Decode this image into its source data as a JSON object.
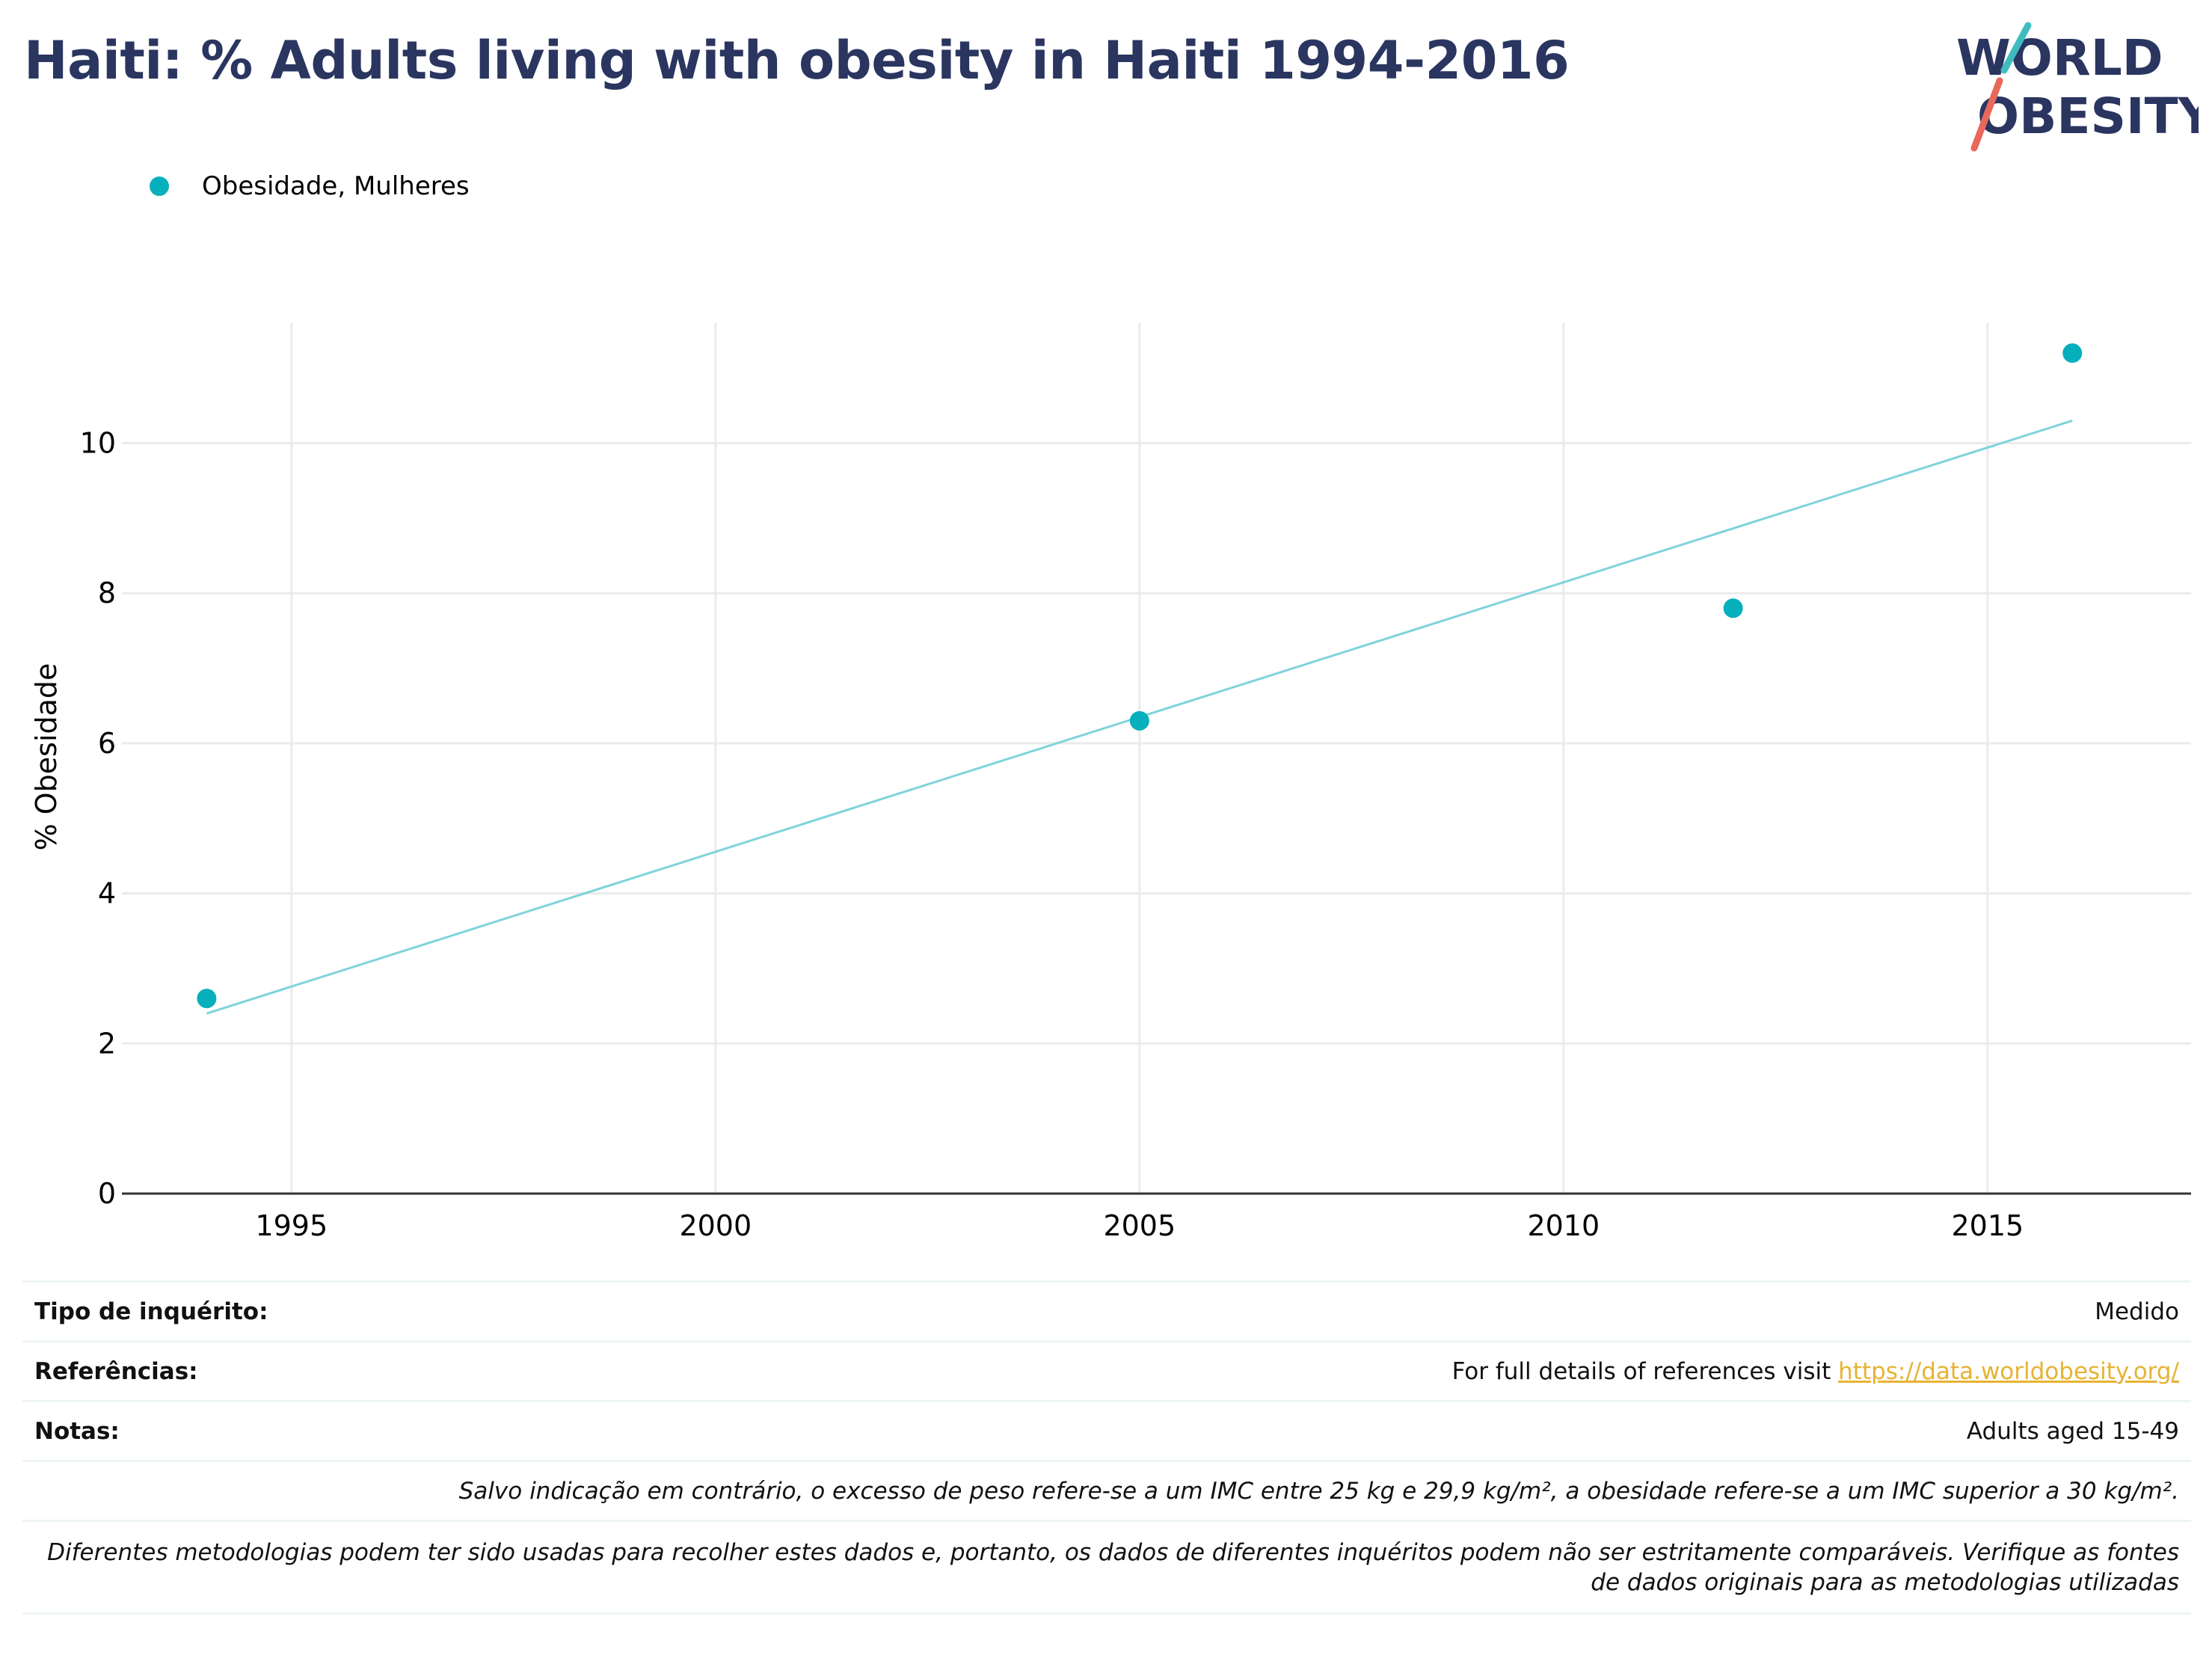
{
  "title": "Haiti: % Adults living with obesity in Haiti 1994-2016",
  "logo": {
    "line1": "WORLD",
    "line2": "OBESITY"
  },
  "colors": {
    "series": "#05b0bc",
    "trend": "#7fd3db",
    "title": "#2a3560",
    "link": "#e6b333",
    "logo_text": "#2a3560",
    "logo_slash_top": "#3fbcc0",
    "logo_slash_bottom": "#e8685a"
  },
  "chart_data": {
    "type": "scatter",
    "title": "Haiti: % Adults living with obesity in Haiti 1994-2016",
    "xlabel": "",
    "ylabel": "% Obesidade",
    "xlim": [
      1993,
      2017.4
    ],
    "ylim": [
      0,
      11.6
    ],
    "x_ticks": [
      1995,
      2000,
      2005,
      2010,
      2015
    ],
    "y_ticks": [
      0,
      2,
      4,
      6,
      8,
      10
    ],
    "grid": true,
    "legend_position": "top-left",
    "series": [
      {
        "name": "Obesidade, Mulheres",
        "x": [
          1994,
          2005,
          2012,
          2016
        ],
        "y": [
          2.6,
          6.3,
          7.8,
          11.2
        ]
      }
    ],
    "trendline": {
      "x": [
        1994,
        2016
      ],
      "y": [
        2.4,
        10.3
      ]
    }
  },
  "info": {
    "survey_type_label": "Tipo de inquérito:",
    "survey_type_value": "Medido",
    "references_label": "Referências:",
    "references_text": "For full details of references visit ",
    "references_link": "https://data.worldobesity.org/",
    "notes_label": "Notas:",
    "notes_value": "Adults aged 15-49",
    "note_bmi": "Salvo indicação em contrário, o excesso de peso refere-se a um IMC entre 25 kg e 29,9 kg/m², a obesidade refere-se a um IMC superior a 30 kg/m².",
    "note_methods": "Diferentes metodologias podem ter sido usadas para recolher estes dados e, portanto, os dados de diferentes inquéritos podem não ser estritamente comparáveis. Verifique as fontes de dados originais para as metodologias utilizadas"
  }
}
